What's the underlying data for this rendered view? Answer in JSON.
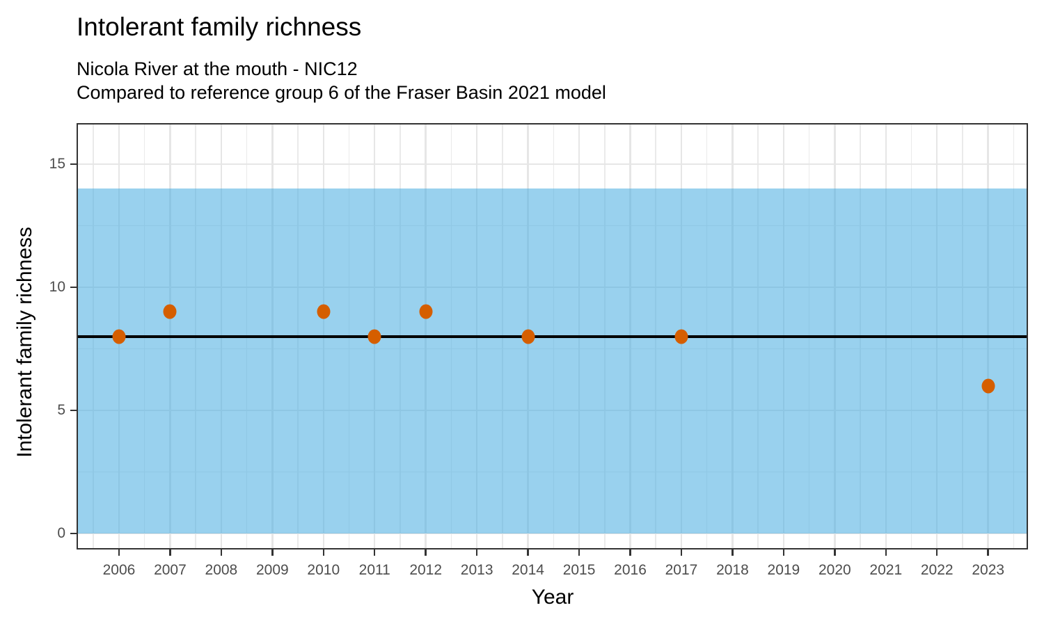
{
  "chart_data": {
    "type": "scatter",
    "title": "Intolerant family richness",
    "subtitle1": "Nicola River at the mouth - NIC12",
    "subtitle2": "Compared to reference group 6 of the Fraser Basin 2021 model",
    "xlabel": "Year",
    "ylabel": "Intolerant family richness",
    "points": [
      {
        "year": 2006,
        "value": 8
      },
      {
        "year": 2007,
        "value": 9
      },
      {
        "year": 2010,
        "value": 9
      },
      {
        "year": 2011,
        "value": 8
      },
      {
        "year": 2012,
        "value": 9
      },
      {
        "year": 2014,
        "value": 8
      },
      {
        "year": 2017,
        "value": 8
      },
      {
        "year": 2023,
        "value": 6
      }
    ],
    "reference_line_y": 8,
    "reference_band": {
      "ymin": 0,
      "ymax": 14
    },
    "x_ticks": [
      2006,
      2007,
      2008,
      2009,
      2010,
      2011,
      2012,
      2013,
      2014,
      2015,
      2016,
      2017,
      2018,
      2019,
      2020,
      2021,
      2022,
      2023
    ],
    "y_ticks": [
      0,
      5,
      10,
      15
    ],
    "x_minor": [
      2005.5,
      2006.5,
      2007.5,
      2008.5,
      2009.5,
      2010.5,
      2011.5,
      2012.5,
      2013.5,
      2014.5,
      2015.5,
      2016.5,
      2017.5,
      2018.5,
      2019.5,
      2020.5,
      2021.5,
      2022.5,
      2023.5
    ],
    "y_minor": [
      2.5,
      7.5,
      12.5
    ],
    "xlim": [
      2005.17,
      2023.78
    ],
    "ylim": [
      -0.65,
      16.67
    ],
    "grid": true,
    "legend": "none",
    "colors": {
      "point": "#D55E00",
      "band": "#99D1EE",
      "band_overlay": "rgba(70,171,224,0.55)",
      "reference_line": "#000000",
      "grid_major": "#E6E6E6",
      "grid_minor": "#EAEAEA",
      "axis_text": "#4D4D4D",
      "panel_border": "#333333"
    }
  }
}
